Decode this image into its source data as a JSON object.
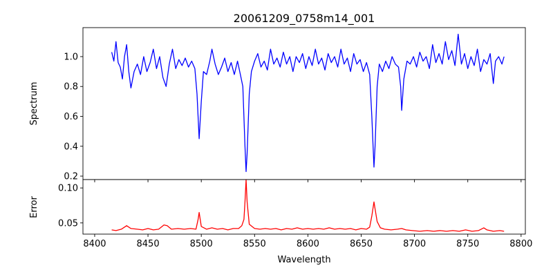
{
  "chart_data": [
    {
      "type": "line",
      "title": "20061209_0758m14_001",
      "xlabel": "",
      "ylabel": "Spectrum",
      "xlim": [
        8389,
        8804
      ],
      "ylim": [
        0.177,
        1.194
      ],
      "xticks": [
        8400,
        8450,
        8500,
        8550,
        8600,
        8650,
        8700,
        8750,
        8800
      ],
      "yticks": [
        0.2,
        0.4,
        0.6,
        0.8,
        1.0
      ],
      "ytick_labels": [
        "0.2",
        "0.4",
        "0.6",
        "0.8",
        "1.0"
      ],
      "color": "#0000ff",
      "grid": false,
      "x": [
        8416,
        8418,
        8420,
        8422,
        8424,
        8426,
        8428,
        8430,
        8432,
        8434,
        8437,
        8440,
        8443,
        8446,
        8449,
        8452,
        8455,
        8458,
        8461,
        8464,
        8467,
        8470,
        8473,
        8476,
        8479,
        8482,
        8485,
        8488,
        8491,
        8494,
        8496,
        8498,
        8500,
        8502,
        8505,
        8508,
        8510,
        8513,
        8516,
        8519,
        8522,
        8525,
        8528,
        8531,
        8534,
        8537,
        8539,
        8541,
        8542,
        8543,
        8545,
        8547,
        8550,
        8553,
        8556,
        8559,
        8562,
        8565,
        8568,
        8571,
        8574,
        8577,
        8580,
        8583,
        8586,
        8589,
        8592,
        8595,
        8598,
        8601,
        8604,
        8607,
        8610,
        8613,
        8616,
        8619,
        8622,
        8625,
        8628,
        8631,
        8634,
        8637,
        8640,
        8643,
        8646,
        8649,
        8652,
        8655,
        8658,
        8660,
        8662,
        8663,
        8665,
        8667,
        8670,
        8673,
        8676,
        8679,
        8682,
        8685,
        8687,
        8688,
        8690,
        8693,
        8696,
        8699,
        8702,
        8705,
        8708,
        8711,
        8714,
        8717,
        8720,
        8723,
        8726,
        8729,
        8732,
        8735,
        8738,
        8741,
        8744,
        8747,
        8750,
        8753,
        8756,
        8759,
        8762,
        8765,
        8768,
        8771,
        8774,
        8776,
        8779,
        8782,
        8784
      ],
      "y": [
        1.03,
        0.97,
        1.1,
        0.96,
        0.93,
        0.85,
        1.0,
        1.08,
        0.9,
        0.79,
        0.9,
        0.95,
        0.88,
        1.0,
        0.9,
        0.96,
        1.05,
        0.92,
        1.0,
        0.86,
        0.8,
        0.95,
        1.05,
        0.92,
        0.98,
        0.94,
        0.99,
        0.93,
        0.97,
        0.92,
        0.75,
        0.45,
        0.7,
        0.9,
        0.88,
        0.97,
        1.05,
        0.95,
        0.88,
        0.93,
        0.99,
        0.9,
        0.96,
        0.88,
        0.97,
        0.87,
        0.8,
        0.4,
        0.23,
        0.35,
        0.75,
        0.9,
        0.97,
        1.02,
        0.93,
        0.97,
        0.91,
        1.05,
        0.95,
        0.99,
        0.93,
        1.03,
        0.95,
        1.0,
        0.9,
        1.0,
        0.96,
        1.02,
        0.92,
        1.0,
        0.94,
        1.05,
        0.95,
        0.99,
        0.91,
        1.02,
        0.96,
        1.0,
        0.93,
        1.05,
        0.95,
        0.99,
        0.9,
        1.02,
        0.95,
        0.98,
        0.9,
        0.96,
        0.88,
        0.6,
        0.26,
        0.4,
        0.8,
        0.95,
        0.9,
        0.97,
        0.92,
        1.0,
        0.95,
        0.93,
        0.8,
        0.64,
        0.85,
        0.97,
        0.95,
        1.0,
        0.93,
        1.03,
        0.97,
        1.0,
        0.92,
        1.08,
        0.96,
        1.02,
        0.95,
        1.1,
        0.98,
        1.04,
        0.94,
        1.15,
        0.95,
        1.02,
        0.92,
        1.0,
        0.94,
        1.05,
        0.9,
        0.98,
        0.95,
        1.02,
        0.82,
        0.97,
        1.0,
        0.95,
        1.0
      ]
    },
    {
      "type": "line",
      "title": "",
      "xlabel": "Wavelength",
      "ylabel": "Error",
      "xlim": [
        8389,
        8804
      ],
      "ylim": [
        0.034,
        0.112
      ],
      "xticks": [
        8400,
        8450,
        8500,
        8550,
        8600,
        8650,
        8700,
        8750,
        8800
      ],
      "xtick_labels": [
        "8400",
        "8450",
        "8500",
        "8550",
        "8600",
        "8650",
        "8700",
        "8750",
        "8800"
      ],
      "yticks": [
        0.05,
        0.1
      ],
      "ytick_labels": [
        "0.05",
        "0.10"
      ],
      "color": "#ff0000",
      "grid": false,
      "x": [
        8416,
        8420,
        8425,
        8430,
        8434,
        8440,
        8445,
        8450,
        8455,
        8460,
        8465,
        8468,
        8472,
        8478,
        8484,
        8490,
        8495,
        8497,
        8498,
        8500,
        8505,
        8510,
        8515,
        8520,
        8525,
        8530,
        8535,
        8538,
        8540,
        8541,
        8542,
        8543,
        8545,
        8550,
        8555,
        8560,
        8565,
        8570,
        8575,
        8580,
        8585,
        8590,
        8595,
        8600,
        8605,
        8610,
        8615,
        8620,
        8625,
        8630,
        8635,
        8640,
        8645,
        8650,
        8655,
        8658,
        8660,
        8662,
        8663,
        8665,
        8668,
        8672,
        8678,
        8684,
        8688,
        8692,
        8698,
        8705,
        8712,
        8718,
        8724,
        8730,
        8736,
        8742,
        8748,
        8754,
        8760,
        8765,
        8768,
        8774,
        8780,
        8784
      ],
      "y": [
        0.04,
        0.039,
        0.041,
        0.046,
        0.042,
        0.041,
        0.04,
        0.042,
        0.04,
        0.041,
        0.047,
        0.046,
        0.041,
        0.042,
        0.041,
        0.042,
        0.041,
        0.055,
        0.065,
        0.045,
        0.041,
        0.043,
        0.041,
        0.042,
        0.04,
        0.042,
        0.042,
        0.046,
        0.055,
        0.08,
        0.112,
        0.08,
        0.048,
        0.042,
        0.041,
        0.042,
        0.041,
        0.042,
        0.04,
        0.042,
        0.041,
        0.043,
        0.041,
        0.042,
        0.041,
        0.042,
        0.041,
        0.043,
        0.041,
        0.042,
        0.041,
        0.042,
        0.04,
        0.042,
        0.041,
        0.044,
        0.06,
        0.08,
        0.07,
        0.052,
        0.043,
        0.041,
        0.04,
        0.041,
        0.042,
        0.04,
        0.039,
        0.038,
        0.039,
        0.038,
        0.039,
        0.038,
        0.039,
        0.038,
        0.04,
        0.038,
        0.039,
        0.043,
        0.04,
        0.038,
        0.039,
        0.038
      ]
    }
  ]
}
